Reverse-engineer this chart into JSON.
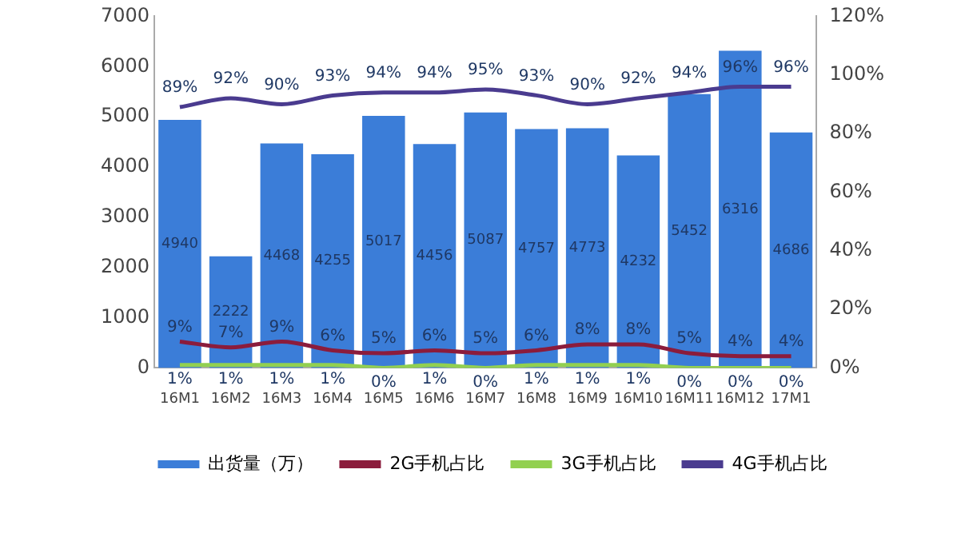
{
  "chart_data": {
    "type": "bar",
    "categories": [
      "16M1",
      "16M2",
      "16M3",
      "16M4",
      "16M5",
      "16M6",
      "16M7",
      "16M8",
      "16M9",
      "16M10",
      "16M11",
      "16M12",
      "17M1"
    ],
    "series": [
      {
        "name": "出货量（万）",
        "color": "#3b7dd8",
        "values": [
          4940,
          2222,
          4468,
          4255,
          5017,
          4456,
          5087,
          4757,
          4773,
          4232,
          5452,
          6316,
          4686
        ],
        "value_labels": [
          "4940",
          "2222",
          "4468",
          "4255",
          "5017",
          "4456",
          "5087",
          "4757",
          "4773",
          "4232",
          "5452",
          "6316",
          "4686"
        ]
      },
      {
        "name": "2G手机占比",
        "type": "line",
        "axis": "y2",
        "color": "#8b1c3c",
        "values": [
          9,
          7,
          9,
          6,
          5,
          6,
          5,
          6,
          8,
          8,
          5,
          4,
          4
        ],
        "value_labels": [
          "9%",
          "7%",
          "9%",
          "6%",
          "5%",
          "6%",
          "5%",
          "6%",
          "8%",
          "8%",
          "5%",
          "4%",
          "4%"
        ]
      },
      {
        "name": "3G手机占比",
        "type": "line",
        "axis": "y2",
        "color": "#92d050",
        "values": [
          1,
          1,
          1,
          1,
          0,
          1,
          0,
          1,
          1,
          1,
          0,
          0,
          0
        ],
        "value_labels": [
          "1%",
          "1%",
          "1%",
          "1%",
          "0%",
          "1%",
          "0%",
          "1%",
          "1%",
          "1%",
          "0%",
          "0%",
          "0%"
        ]
      },
      {
        "name": "4G手机占比",
        "type": "line",
        "axis": "y2",
        "color": "#4a3b8f",
        "values": [
          89,
          92,
          90,
          93,
          94,
          94,
          95,
          93,
          90,
          92,
          94,
          96,
          96
        ],
        "value_labels": [
          "89%",
          "92%",
          "90%",
          "93%",
          "94%",
          "94%",
          "95%",
          "93%",
          "90%",
          "92%",
          "94%",
          "96%",
          "96%"
        ]
      }
    ],
    "ylim": [
      0,
      7000
    ],
    "yticks": [
      0,
      1000,
      2000,
      3000,
      4000,
      5000,
      6000,
      7000
    ],
    "y2lim": [
      0,
      120
    ],
    "y2ticks": [
      {
        "value": 0,
        "label": "0%"
      },
      {
        "value": 20,
        "label": "20%"
      },
      {
        "value": 40,
        "label": "40%"
      },
      {
        "value": 60,
        "label": "60%"
      },
      {
        "value": 80,
        "label": "80%"
      },
      {
        "value": 100,
        "label": "100%"
      },
      {
        "value": 120,
        "label": "120%"
      }
    ],
    "grid": false,
    "legend": "bottom",
    "marker": "none",
    "line_style": "solid"
  }
}
